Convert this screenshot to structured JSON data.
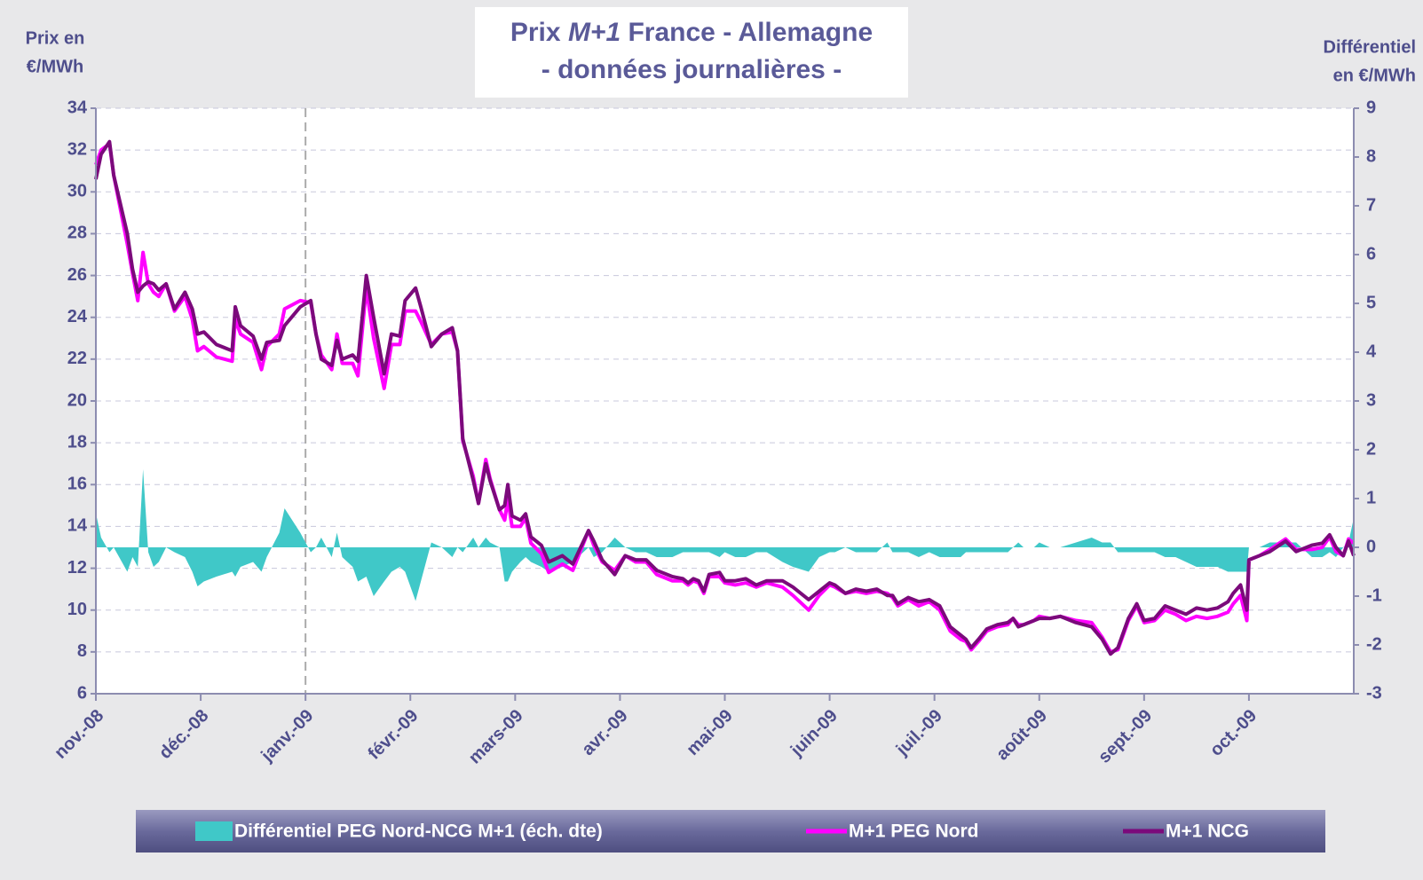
{
  "chart_data": {
    "type": "line",
    "title": {
      "prefix": "Prix",
      "italic": "M+1",
      "rest": "France - Allemagne",
      "line2": "- données journalières -"
    },
    "ylabel": [
      "Prix en",
      "€/MWh"
    ],
    "y2label": [
      "Différentiel",
      "en €/MWh"
    ],
    "xlim": [
      0,
      12
    ],
    "xticks": [
      {
        "value": 0,
        "label": "nov.-08"
      },
      {
        "value": 1,
        "label": "déc.-08"
      },
      {
        "value": 2,
        "label": "janv.-09"
      },
      {
        "value": 3,
        "label": "févr.-09"
      },
      {
        "value": 4,
        "label": "mars-09"
      },
      {
        "value": 5,
        "label": "avr.-09"
      },
      {
        "value": 6,
        "label": "mai-09"
      },
      {
        "value": 7,
        "label": "juin-09"
      },
      {
        "value": 8,
        "label": "juil.-09"
      },
      {
        "value": 9,
        "label": "août-09"
      },
      {
        "value": 10,
        "label": "sept.-09"
      },
      {
        "value": 11,
        "label": "oct.-09"
      }
    ],
    "ylim": [
      6,
      34
    ],
    "yticks": [
      6,
      8,
      10,
      12,
      14,
      16,
      18,
      20,
      22,
      24,
      26,
      28,
      30,
      32,
      34
    ],
    "y2lim": [
      -3,
      9
    ],
    "y2ticks": [
      -3,
      -2,
      -1,
      0,
      1,
      2,
      3,
      4,
      5,
      6,
      7,
      8,
      9
    ],
    "grid": true,
    "x": [
      0,
      0.05,
      0.13,
      0.17,
      0.3,
      0.35,
      0.4,
      0.45,
      0.5,
      0.55,
      0.6,
      0.67,
      0.75,
      0.85,
      0.92,
      0.97,
      1.03,
      1.15,
      1.3,
      1.33,
      1.38,
      1.5,
      1.58,
      1.63,
      1.75,
      1.8,
      1.95,
      2.05,
      2.1,
      2.15,
      2.25,
      2.3,
      2.35,
      2.45,
      2.5,
      2.58,
      2.65,
      2.75,
      2.82,
      2.9,
      2.95,
      3.05,
      3.1,
      3.2,
      3.3,
      3.4,
      3.45,
      3.5,
      3.6,
      3.65,
      3.72,
      3.76,
      3.85,
      3.9,
      3.93,
      3.97,
      4.05,
      4.1,
      4.15,
      4.25,
      4.32,
      4.45,
      4.55,
      4.7,
      4.75,
      4.83,
      4.95,
      5.05,
      5.15,
      5.25,
      5.35,
      5.5,
      5.6,
      5.65,
      5.7,
      5.75,
      5.8,
      5.85,
      5.95,
      6.0,
      6.1,
      6.2,
      6.3,
      6.4,
      6.55,
      6.65,
      6.8,
      6.9,
      7.0,
      7.05,
      7.15,
      7.25,
      7.35,
      7.45,
      7.55,
      7.6,
      7.65,
      7.75,
      7.85,
      7.95,
      8.05,
      8.15,
      8.25,
      8.3,
      8.35,
      8.42,
      8.5,
      8.6,
      8.7,
      8.75,
      8.8,
      8.85,
      8.95,
      9.0,
      9.1,
      9.2,
      9.35,
      9.5,
      9.6,
      9.68,
      9.75,
      9.85,
      9.93,
      10.0,
      10.1,
      10.2,
      10.3,
      10.4,
      10.5,
      10.6,
      10.7,
      10.8,
      10.85,
      10.92,
      10.98,
      11.0,
      11.1,
      11.2,
      11.35,
      11.45,
      11.6,
      11.7,
      11.77,
      11.83,
      11.9,
      11.95,
      12.0
    ],
    "series": [
      {
        "name": "Différentiel PEG Nord-NCG M+1 (éch. dte)",
        "color": "#40c8c8",
        "kind": "area",
        "axis": "y2",
        "values": [
          0.7,
          0.2,
          -0.1,
          0,
          -0.5,
          -0.2,
          -0.4,
          1.6,
          -0.1,
          -0.4,
          -0.3,
          0,
          -0.1,
          -0.2,
          -0.5,
          -0.8,
          -0.7,
          -0.6,
          -0.5,
          -0.6,
          -0.4,
          -0.3,
          -0.5,
          -0.2,
          0.3,
          0.8,
          0.3,
          -0.1,
          0,
          0.2,
          -0.2,
          0.3,
          -0.2,
          -0.4,
          -0.7,
          -0.6,
          -1.0,
          -0.7,
          -0.5,
          -0.4,
          -0.5,
          -1.1,
          -0.7,
          0.1,
          0,
          -0.2,
          0,
          -0.1,
          0.2,
          0,
          0.2,
          0.1,
          0,
          -0.7,
          -0.7,
          -0.5,
          -0.3,
          -0.2,
          -0.3,
          -0.4,
          -0.5,
          -0.4,
          -0.3,
          0,
          -0.2,
          -0.1,
          0.2,
          0,
          -0.1,
          -0.1,
          -0.2,
          -0.2,
          -0.1,
          -0.1,
          -0.1,
          -0.1,
          -0.1,
          -0.1,
          -0.2,
          -0.1,
          -0.2,
          -0.2,
          -0.1,
          -0.1,
          -0.3,
          -0.4,
          -0.5,
          -0.2,
          -0.1,
          -0.1,
          0,
          -0.1,
          -0.1,
          -0.1,
          0.1,
          -0.1,
          -0.1,
          -0.1,
          -0.2,
          -0.1,
          -0.2,
          -0.2,
          -0.2,
          -0.1,
          -0.1,
          -0.1,
          -0.1,
          -0.1,
          -0.1,
          0,
          0.1,
          0,
          0,
          0.1,
          0,
          0,
          0.1,
          0.2,
          0.1,
          0.1,
          -0.1,
          -0.1,
          -0.1,
          -0.1,
          -0.1,
          -0.2,
          -0.2,
          -0.3,
          -0.4,
          -0.4,
          -0.4,
          -0.5,
          -0.5,
          -0.5,
          -0.5,
          0,
          0,
          0.1,
          0.1,
          0.1,
          -0.2,
          -0.2,
          -0.1,
          -0.2,
          0,
          0.1,
          0.6
        ]
      },
      {
        "name": "M+1 PEG Nord",
        "color": "#ff00ff",
        "kind": "line",
        "values": [
          31.3,
          32.0,
          32.3,
          30.8,
          27.5,
          26.1,
          24.8,
          27.1,
          25.6,
          25.2,
          25.0,
          25.6,
          24.3,
          25.0,
          23.9,
          22.4,
          22.6,
          22.1,
          21.9,
          23.9,
          23.2,
          22.8,
          21.5,
          22.6,
          23.2,
          24.4,
          24.8,
          24.7,
          23.2,
          22.2,
          21.5,
          23.2,
          21.8,
          21.8,
          21.2,
          25.4,
          23.0,
          20.6,
          22.7,
          22.7,
          24.3,
          24.3,
          23.8,
          22.7,
          23.2,
          23.3,
          22.4,
          18.1,
          16.4,
          15.1,
          17.2,
          16.3,
          14.8,
          14.3,
          15.3,
          14.0,
          14.0,
          14.4,
          13.2,
          12.7,
          11.8,
          12.2,
          11.9,
          13.8,
          13.1,
          12.3,
          11.9,
          12.6,
          12.3,
          12.3,
          11.7,
          11.4,
          11.4,
          11.2,
          11.4,
          11.3,
          10.8,
          11.6,
          11.6,
          11.3,
          11.2,
          11.3,
          11.1,
          11.3,
          11.1,
          10.7,
          10.0,
          10.7,
          11.2,
          11.1,
          10.8,
          10.9,
          10.8,
          10.9,
          10.8,
          10.6,
          10.2,
          10.5,
          10.2,
          10.4,
          10.0,
          9.0,
          8.6,
          8.5,
          8.1,
          8.5,
          9.0,
          9.2,
          9.3,
          9.6,
          9.3,
          9.3,
          9.5,
          9.7,
          9.6,
          9.7,
          9.5,
          9.4,
          8.7,
          8.0,
          8.1,
          9.5,
          10.2,
          9.4,
          9.5,
          10.0,
          9.8,
          9.5,
          9.7,
          9.6,
          9.7,
          9.9,
          10.3,
          10.7,
          9.5,
          12.4,
          12.6,
          12.9,
          13.4,
          12.9,
          12.9,
          13.0,
          13.5,
          12.8,
          12.6,
          13.4,
          13.2
        ]
      },
      {
        "name": "M+1 NCG",
        "color": "#7b0a7b",
        "kind": "line",
        "values": [
          30.6,
          31.8,
          32.4,
          30.8,
          28,
          26.3,
          25.2,
          25.5,
          25.7,
          25.6,
          25.3,
          25.6,
          24.4,
          25.2,
          24.4,
          23.2,
          23.3,
          22.7,
          22.4,
          24.5,
          23.6,
          23.1,
          22,
          22.8,
          22.9,
          23.6,
          24.5,
          24.8,
          23.2,
          22,
          21.7,
          22.9,
          22,
          22.2,
          21.9,
          26,
          24,
          21.3,
          23.2,
          23.1,
          24.8,
          25.4,
          24.5,
          22.6,
          23.2,
          23.5,
          22.4,
          18.2,
          16.2,
          15.1,
          17,
          16.2,
          14.8,
          15,
          16,
          14.5,
          14.3,
          14.6,
          13.5,
          13.1,
          12.3,
          12.6,
          12.2,
          13.8,
          13.3,
          12.4,
          11.7,
          12.6,
          12.4,
          12.4,
          11.9,
          11.6,
          11.5,
          11.3,
          11.5,
          11.4,
          10.9,
          11.7,
          11.8,
          11.4,
          11.4,
          11.5,
          11.2,
          11.4,
          11.4,
          11.1,
          10.5,
          10.9,
          11.3,
          11.2,
          10.8,
          11,
          10.9,
          11,
          10.7,
          10.7,
          10.3,
          10.6,
          10.4,
          10.5,
          10.2,
          9.2,
          8.8,
          8.6,
          8.2,
          8.6,
          9.1,
          9.3,
          9.4,
          9.6,
          9.2,
          9.3,
          9.5,
          9.6,
          9.6,
          9.7,
          9.4,
          9.2,
          8.6,
          7.9,
          8.2,
          9.6,
          10.3,
          9.5,
          9.6,
          10.2,
          10,
          9.8,
          10.1,
          10,
          10.1,
          10.4,
          10.8,
          11.2,
          10,
          12.4,
          12.6,
          12.8,
          13.3,
          12.8,
          13.1,
          13.2,
          13.6,
          13,
          12.6,
          13.3,
          12.6
        ]
      }
    ]
  }
}
